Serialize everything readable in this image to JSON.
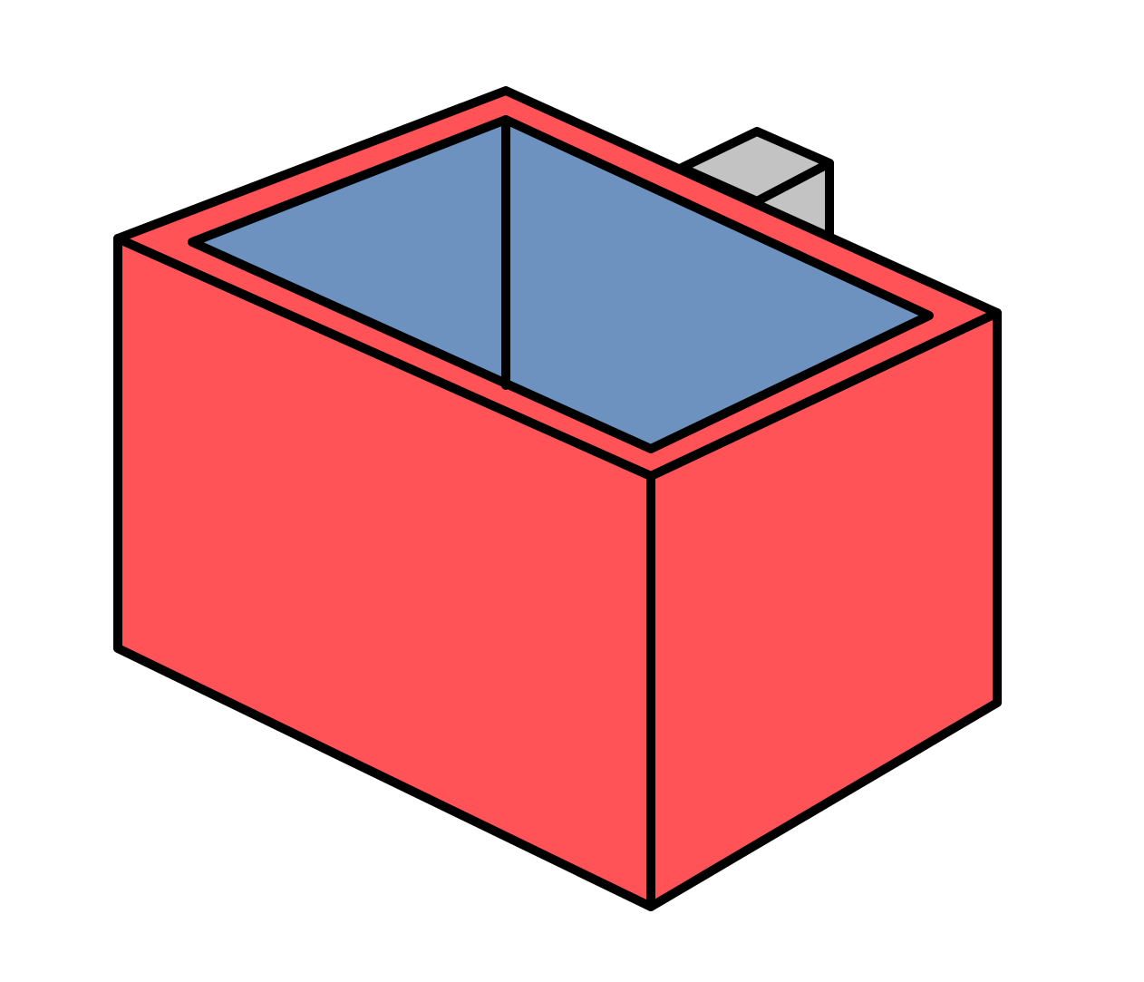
{
  "diagram": {
    "kind": "isometric-open-box",
    "colors": {
      "box_face": "#ff5357",
      "interior": "#6e92bf",
      "block": "#c3c3c3",
      "outline": "#000000",
      "background": "#ffffff"
    },
    "parts": [
      "back-block",
      "box-left-face",
      "box-right-face",
      "box-rim",
      "box-interior",
      "inner-back-corner-edge"
    ]
  }
}
